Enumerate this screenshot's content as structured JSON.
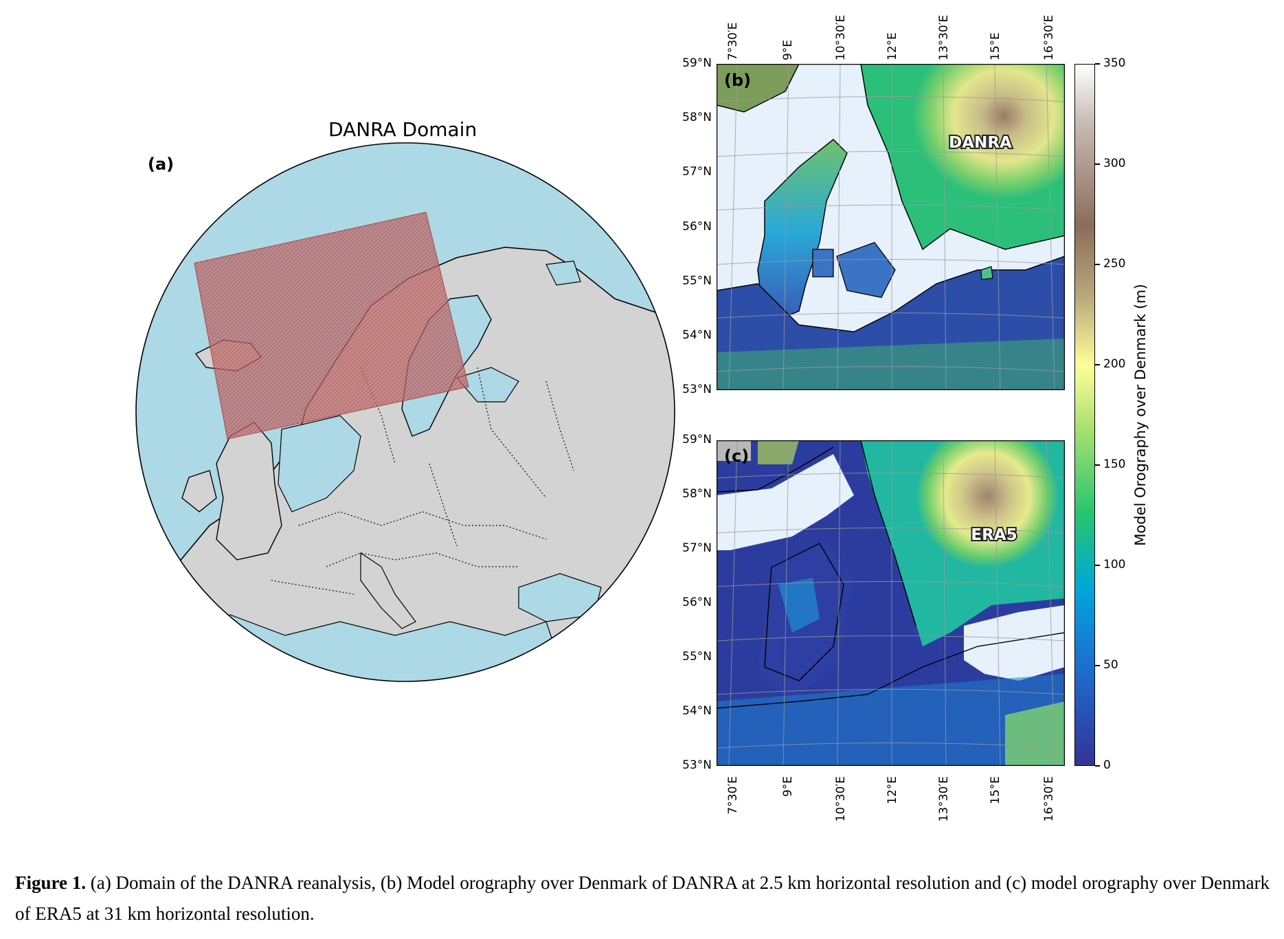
{
  "panel_a": {
    "label": "(a)",
    "title": "DANRA Domain"
  },
  "panel_b": {
    "label": "(b)",
    "map_label": "DANRA"
  },
  "panel_c": {
    "label": "(c)",
    "map_label": "ERA5"
  },
  "lat_ticks": [
    "59°N",
    "58°N",
    "57°N",
    "56°N",
    "55°N",
    "54°N",
    "53°N"
  ],
  "lon_ticks": [
    "7°30′E",
    "9°E",
    "10°30′E",
    "12°E",
    "13°30′E",
    "15°E",
    "16°30′E"
  ],
  "colorbar": {
    "label": "Model Orography over Denmark (m)",
    "ticks": [
      "350",
      "300",
      "250",
      "200",
      "150",
      "100",
      "50",
      "0"
    ],
    "range": [
      0,
      350
    ],
    "colormap": "terrain"
  },
  "caption": {
    "lead": "Figure 1.",
    "text": " (a) Domain of the DANRA reanalysis, (b) Model orography over Denmark of DANRA at 2.5 km horizontal resolution and (c) model orography over Denmark of ERA5 at 31 km horizontal resolution."
  },
  "colors": {
    "ocean": "#add8e6",
    "land": "#d3d3d3",
    "domain": "#b85a5a",
    "map_sea": "#e6f1fb"
  }
}
